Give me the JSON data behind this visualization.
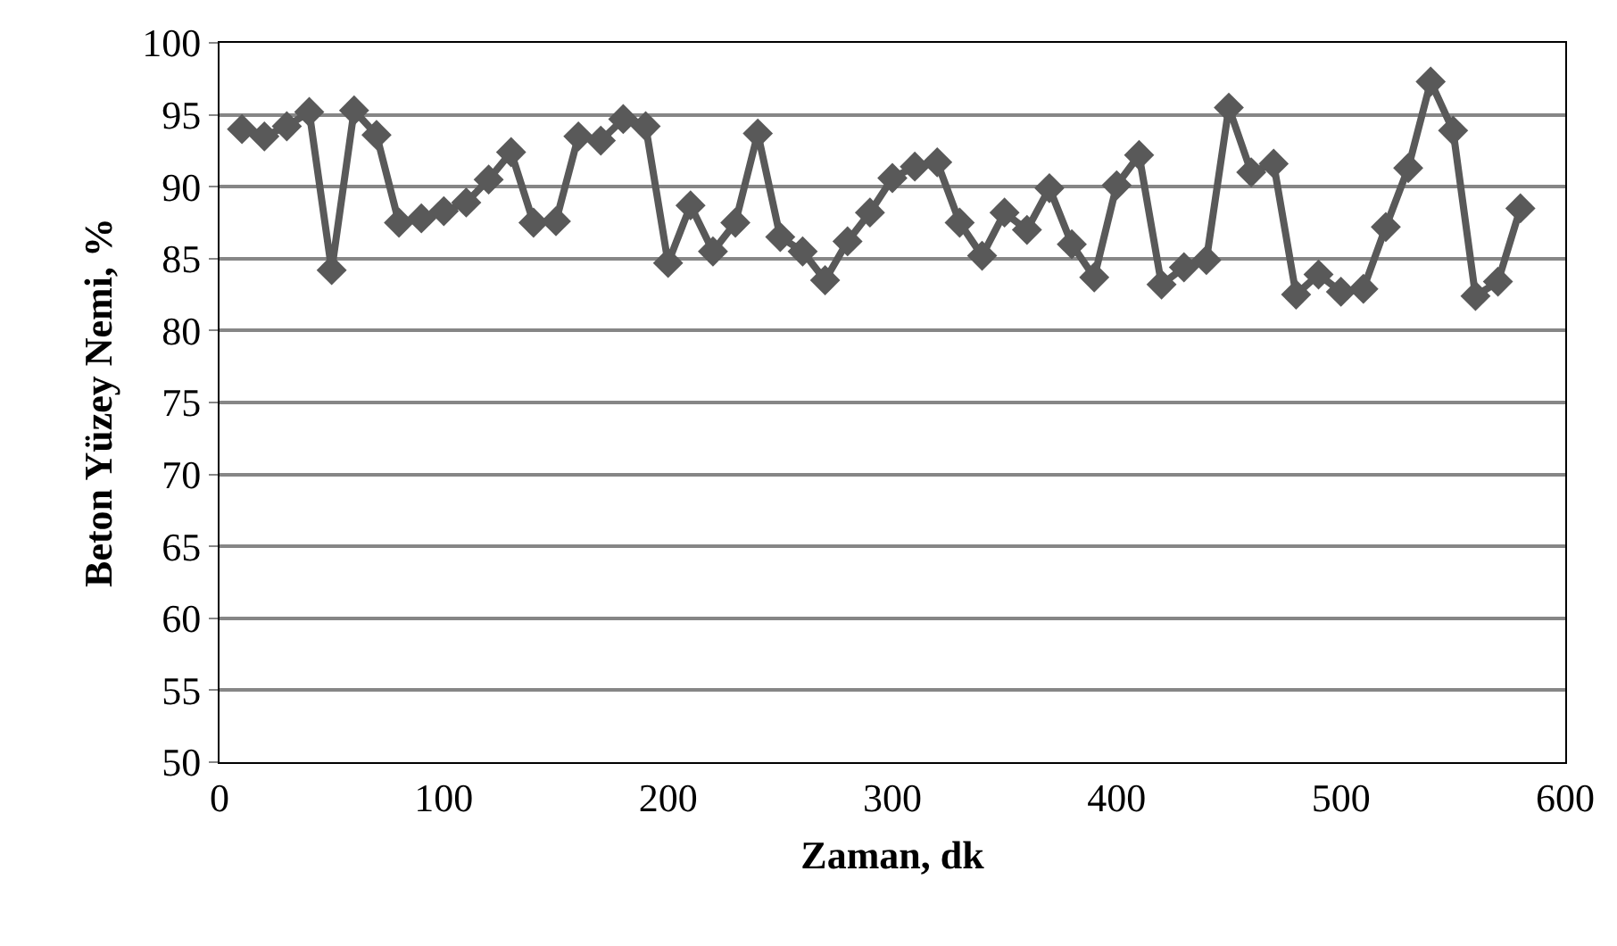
{
  "chart_data": {
    "type": "line",
    "xlabel": "Zaman, dk",
    "ylabel": "Beton Yüzey Nemi, %",
    "x": [
      10,
      20,
      30,
      40,
      50,
      60,
      70,
      80,
      90,
      100,
      110,
      120,
      130,
      140,
      150,
      160,
      170,
      180,
      190,
      200,
      210,
      220,
      230,
      240,
      250,
      260,
      270,
      280,
      290,
      300,
      310,
      320,
      330,
      340,
      350,
      360,
      370,
      380,
      390,
      400,
      410,
      420,
      430,
      440,
      450,
      460,
      470,
      480,
      490,
      500,
      510,
      520,
      530,
      540,
      550,
      560,
      570,
      580
    ],
    "series": [
      {
        "color": "#595959",
        "values": [
          94,
          93.5,
          94.2,
          95.2,
          84.2,
          95.3,
          93.6,
          87.5,
          87.8,
          88.3,
          88.9,
          90.5,
          92.4,
          87.5,
          87.6,
          93.5,
          93.2,
          94.7,
          94.2,
          84.7,
          88.7,
          85.5,
          87.5,
          93.7,
          86.5,
          85.5,
          83.5,
          86.2,
          88.2,
          90.6,
          91.4,
          91.7,
          87.5,
          85.2,
          88.2,
          87,
          89.9,
          86,
          83.7,
          90.1,
          92.2,
          83.2,
          84.4,
          84.9,
          95.5,
          91,
          91.6,
          82.5,
          83.9,
          82.7,
          82.9,
          87.2,
          91.3,
          97.3,
          93.9,
          82.4,
          83.4,
          88.5
        ]
      }
    ],
    "xlim": [
      0,
      600
    ],
    "xticks": [
      0,
      100,
      200,
      300,
      400,
      500,
      600
    ],
    "ylim": [
      50,
      100
    ],
    "yticks": [
      50,
      55,
      60,
      65,
      70,
      75,
      80,
      85,
      90,
      95,
      100
    ],
    "grid": "y",
    "marker": "diamond",
    "line_style": "solid"
  }
}
